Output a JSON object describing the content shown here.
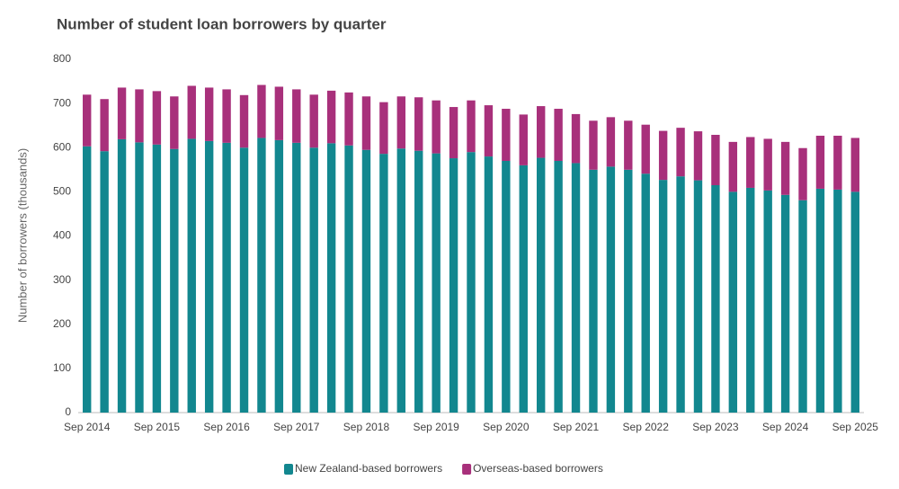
{
  "chart_data": {
    "type": "stacked-bar",
    "title": "Number of student loan borrowers by quarter",
    "y_label": "Number of borrowers (thousands)",
    "categories": [
      "Sep 2014",
      null,
      null,
      null,
      "Sep 2015",
      null,
      null,
      null,
      "Sep 2016",
      null,
      null,
      null,
      "Sep 2017",
      null,
      null,
      null,
      "Sep 2018",
      null,
      null,
      null,
      "Sep 2019",
      null,
      null,
      null,
      "Sep 2020",
      null,
      null,
      null,
      "Sep 2021",
      null,
      null,
      null,
      "Sep 2022",
      null,
      null,
      null,
      "Sep 2023",
      null,
      null,
      null,
      "Sep 2024",
      null,
      null,
      null,
      "Sep 2025"
    ],
    "series": [
      {
        "name": "New Zealand-based borrowers",
        "color": "#12878f",
        "values": [
          603,
          592,
          619,
          612,
          607,
          597,
          620,
          615,
          611,
          600,
          622,
          617,
          611,
          600,
          610,
          605,
          595,
          586,
          598,
          593,
          587,
          576,
          590,
          580,
          570,
          560,
          577,
          570,
          565,
          550,
          557,
          550,
          541,
          527,
          535,
          526,
          515,
          500,
          509,
          503,
          493,
          481,
          507,
          505,
          500
        ]
      },
      {
        "name": "Overseas-based borrowers",
        "color": "#a8307b",
        "values": [
          117,
          118,
          117,
          120,
          121,
          119,
          120,
          121,
          121,
          119,
          120,
          121,
          121,
          120,
          119,
          120,
          121,
          117,
          118,
          121,
          120,
          116,
          117,
          116,
          118,
          115,
          117,
          118,
          111,
          111,
          112,
          111,
          111,
          111,
          110,
          111,
          114,
          113,
          115,
          117,
          120,
          118,
          120,
          122,
          122
        ]
      }
    ],
    "ylim": [
      0,
      800
    ],
    "yticks": [
      0,
      100,
      200,
      300,
      400,
      500,
      600,
      700,
      800
    ],
    "grid": false,
    "legend": "bottom"
  }
}
